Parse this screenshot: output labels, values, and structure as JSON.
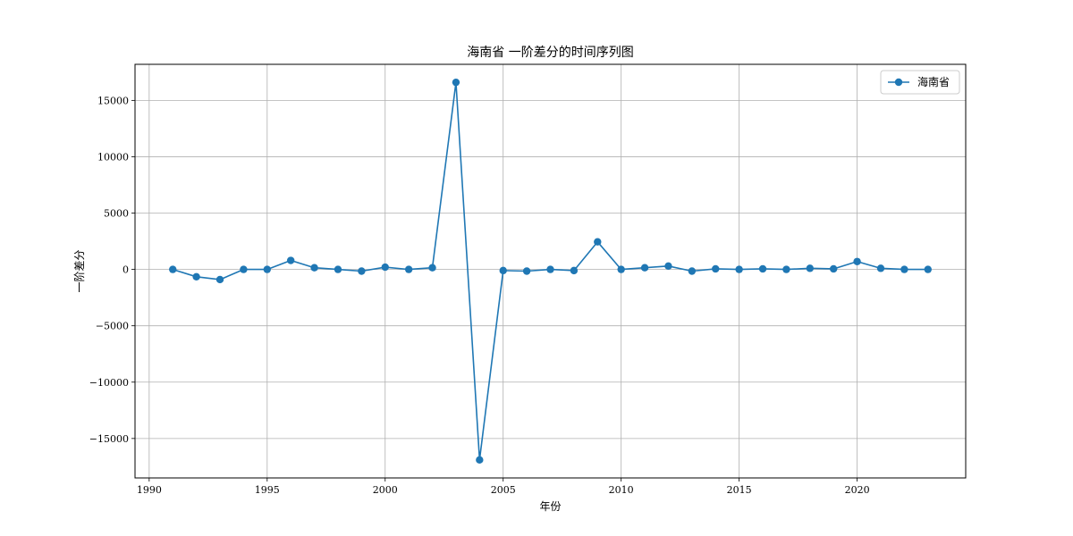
{
  "chart_data": {
    "type": "line",
    "title": "海南省 一阶差分的时间序列图",
    "xlabel": "年份",
    "ylabel": "一阶差分",
    "xlim": [
      1989.4,
      2024.6
    ],
    "ylim": [
      -18500,
      18200
    ],
    "xticks": [
      1990,
      1995,
      2000,
      2005,
      2010,
      2015,
      2020
    ],
    "yticks": [
      -15000,
      -10000,
      -5000,
      0,
      5000,
      10000,
      15000
    ],
    "ytick_labels": [
      "−15000",
      "−10000",
      "−5000",
      "0",
      "5000",
      "10000",
      "15000"
    ],
    "grid": true,
    "legend_position": "top-right",
    "series": [
      {
        "name": "海南省",
        "color": "#1f77b4",
        "marker": "circle",
        "x": [
          1991,
          1992,
          1993,
          1994,
          1995,
          1996,
          1997,
          1998,
          1999,
          2000,
          2001,
          2002,
          2003,
          2004,
          2005,
          2006,
          2007,
          2008,
          2009,
          2010,
          2011,
          2012,
          2013,
          2014,
          2015,
          2016,
          2017,
          2018,
          2019,
          2020,
          2021,
          2022,
          2023
        ],
        "y": [
          0,
          -650,
          -900,
          0,
          0,
          800,
          150,
          0,
          -150,
          200,
          0,
          150,
          16600,
          -16900,
          -100,
          -150,
          0,
          -100,
          2450,
          0,
          150,
          300,
          -150,
          50,
          0,
          50,
          0,
          100,
          50,
          700,
          100,
          0,
          0
        ]
      }
    ]
  }
}
